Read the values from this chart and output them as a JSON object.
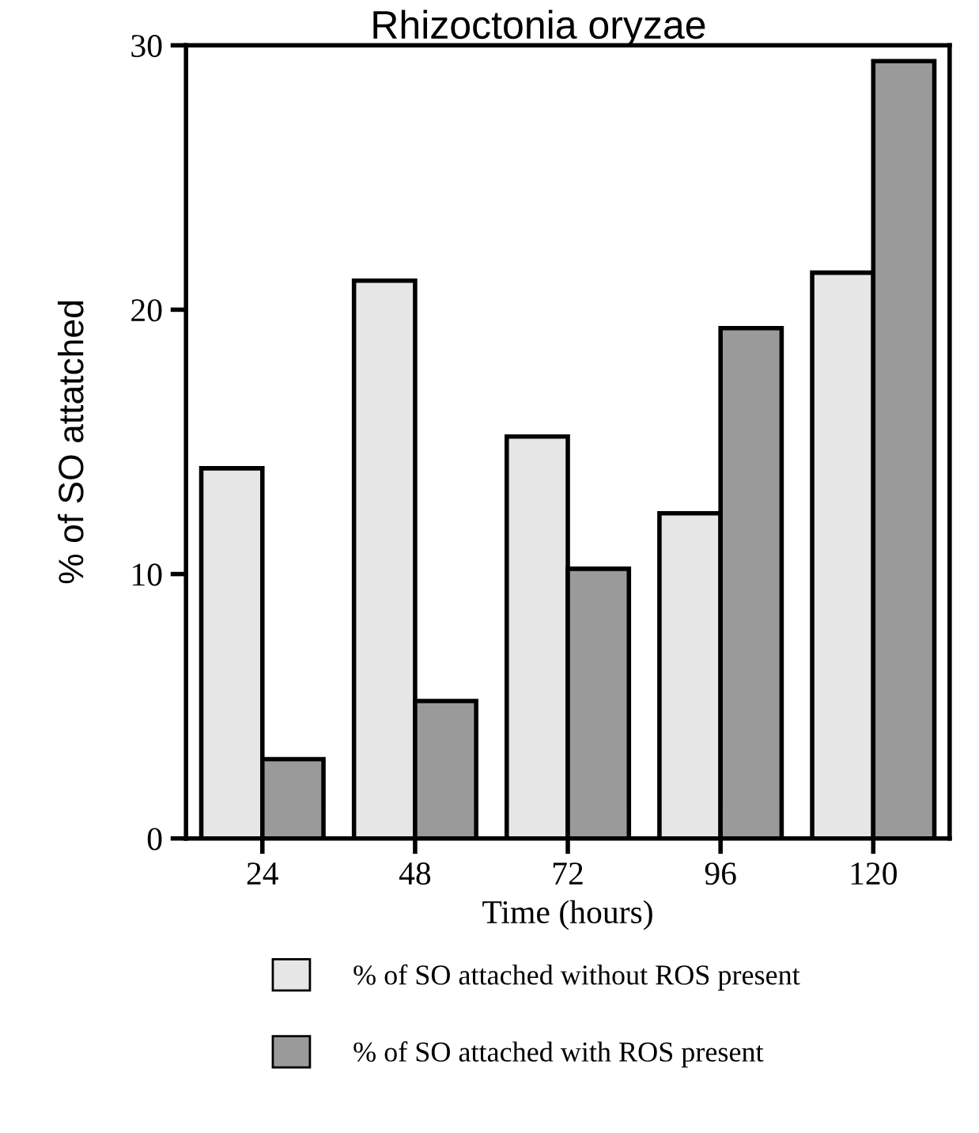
{
  "chart_data": {
    "type": "bar",
    "title": "Rhizoctonia oryzae",
    "xlabel": "Time (hours)",
    "ylabel": "% of SO attatched",
    "categories": [
      "24",
      "48",
      "72",
      "96",
      "120"
    ],
    "series": [
      {
        "name": "% of SO attached without ROS present",
        "color": "#e6e6e6",
        "values": [
          14.0,
          21.1,
          15.2,
          12.3,
          21.4
        ]
      },
      {
        "name": "% of SO attached with ROS present",
        "color": "#9a9a9a",
        "values": [
          3.0,
          5.2,
          10.2,
          19.3,
          29.4
        ]
      }
    ],
    "ylim": [
      0,
      30
    ],
    "yticks": [
      0,
      10,
      20,
      30
    ],
    "grid": false,
    "legend": "bottom"
  }
}
